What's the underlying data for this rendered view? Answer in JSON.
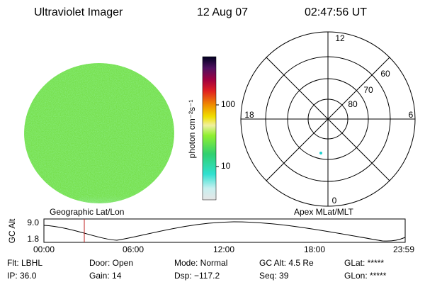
{
  "header": {
    "instrument": "Ultraviolet Imager",
    "date": "12 Aug 07",
    "time": "02:47:56 UT"
  },
  "colorbar": {
    "label": "photon cm⁻²s⁻¹",
    "ticks": [
      "100",
      "10"
    ]
  },
  "polar": {
    "labels": [
      "12",
      "60",
      "70",
      "80",
      "18",
      "6",
      "0"
    ]
  },
  "altitude_plot": {
    "left_title": "Geographic Lat/Lon",
    "right_title": "Apex MLat/MLT",
    "y_label": "GC Alt",
    "y_ticks": [
      "9.0",
      "1.8"
    ],
    "x_ticks": [
      "00:00",
      "06:00",
      "12:00",
      "18:00",
      "23:59"
    ]
  },
  "info": [
    [
      "Flt: LBHL",
      "Door: Open",
      "Mode: Normal",
      "GC Alt: 4.5 Re",
      "GLat: *****"
    ],
    [
      "IP: 36.0",
      "Gain: 14",
      "Dsp: −117.2",
      "Seq: 39",
      "GLon: *****"
    ]
  ]
}
